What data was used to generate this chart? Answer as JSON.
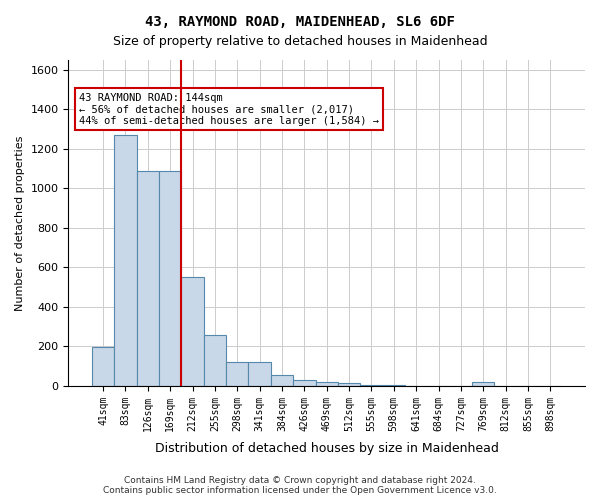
{
  "title": "43, RAYMOND ROAD, MAIDENHEAD, SL6 6DF",
  "subtitle": "Size of property relative to detached houses in Maidenhead",
  "xlabel": "Distribution of detached houses by size in Maidenhead",
  "ylabel": "Number of detached properties",
  "footer_line1": "Contains HM Land Registry data © Crown copyright and database right 2024.",
  "footer_line2": "Contains public sector information licensed under the Open Government Licence v3.0.",
  "annotation_title": "43 RAYMOND ROAD: 144sqm",
  "annotation_line2": "← 56% of detached houses are smaller (2,017)",
  "annotation_line3": "44% of semi-detached houses are larger (1,584) →",
  "bar_values": [
    196,
    1270,
    1090,
    1090,
    550,
    260,
    120,
    120,
    55,
    30,
    20,
    15,
    5,
    5,
    0,
    0,
    0,
    20,
    0,
    0,
    0
  ],
  "bar_labels": [
    "41sqm",
    "83sqm",
    "126sqm",
    "169sqm",
    "212sqm",
    "255sqm",
    "298sqm",
    "341sqm",
    "384sqm",
    "426sqm",
    "469sqm",
    "512sqm",
    "555sqm",
    "598sqm",
    "641sqm",
    "684sqm",
    "727sqm",
    "769sqm",
    "812sqm",
    "855sqm",
    "898sqm"
  ],
  "bar_color": "#c8d8e8",
  "bar_edge_color": "#5588aa",
  "property_line_x": 3.5,
  "property_line_color": "#cc0000",
  "ylim": [
    0,
    1650
  ],
  "yticks": [
    0,
    200,
    400,
    600,
    800,
    1000,
    1200,
    1400,
    1600
  ],
  "annotation_box_color": "#cc0000",
  "background_color": "#ffffff",
  "grid_color": "#cccccc"
}
